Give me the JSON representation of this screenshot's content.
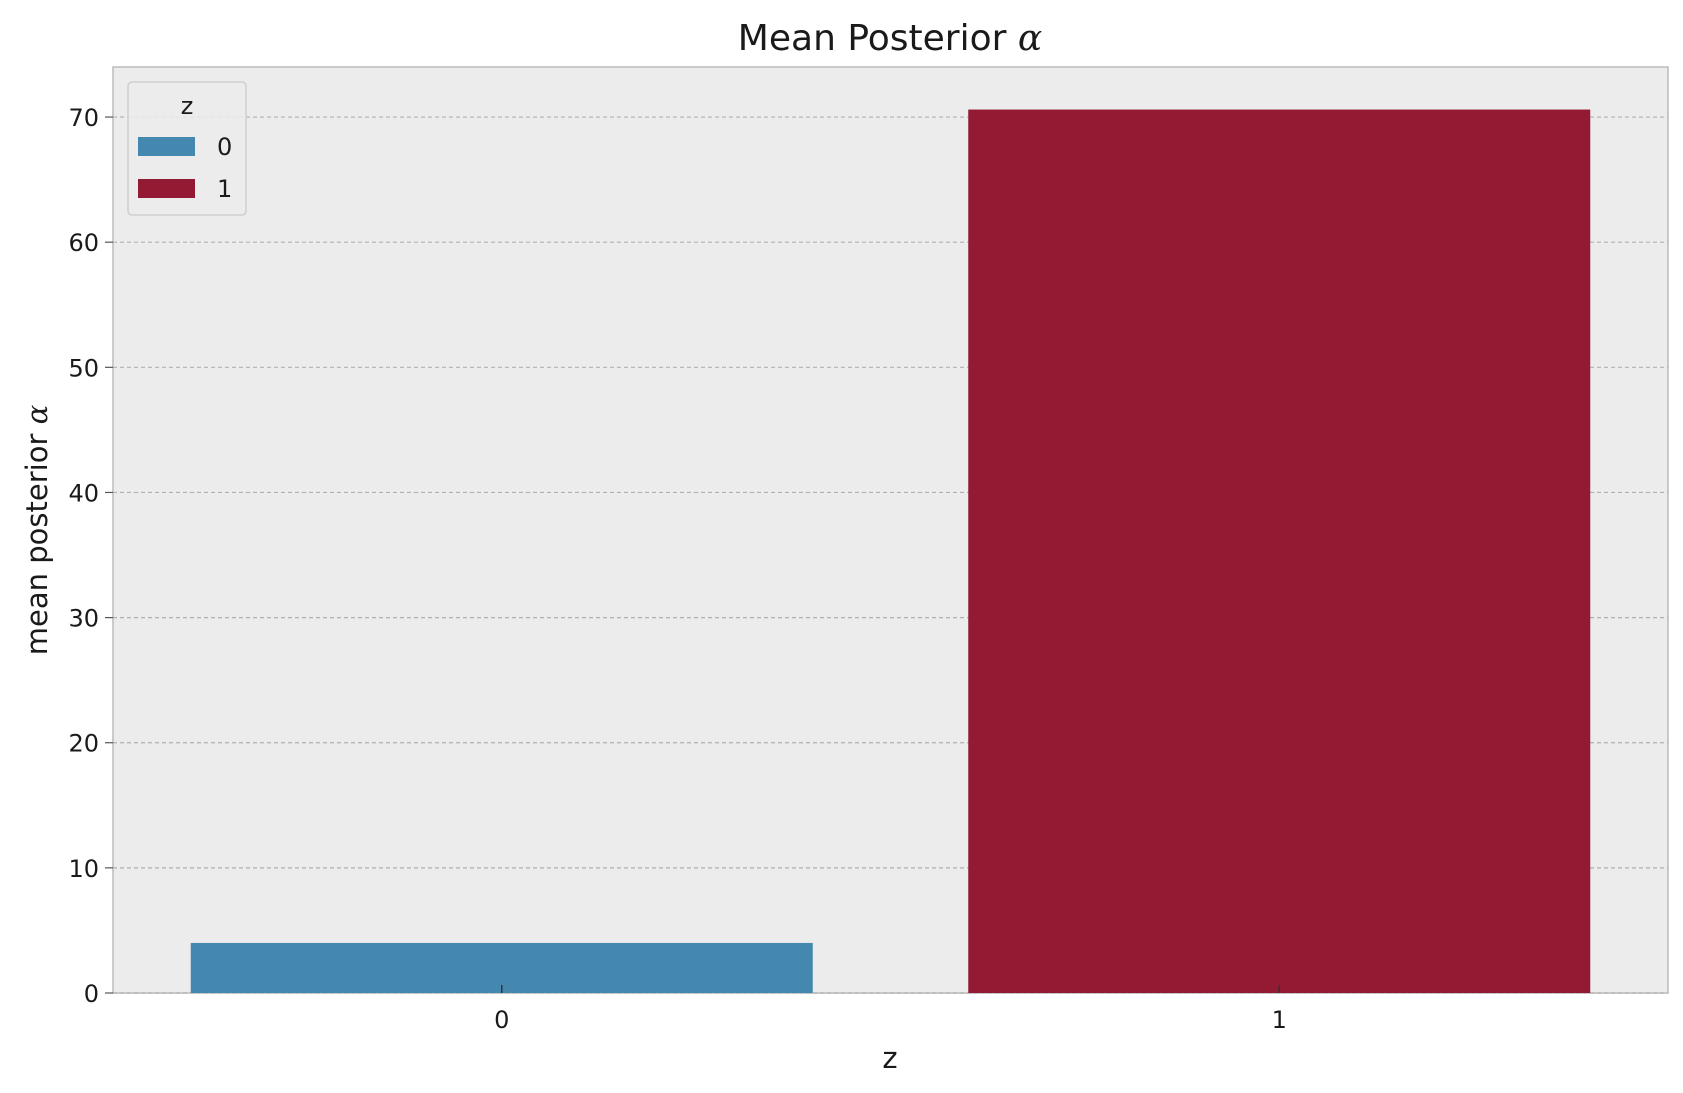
{
  "chart_data": {
    "type": "bar",
    "title": "Mean Posterior",
    "title_symbol": "α",
    "xlabel": "z",
    "ylabel": "mean posterior",
    "ylabel_symbol": "α",
    "categories": [
      "0",
      "1"
    ],
    "values": [
      4.0,
      70.6
    ],
    "colors": [
      "#4488b0",
      "#921a33"
    ],
    "ylim": [
      0,
      74
    ],
    "yticks": [
      0,
      10,
      20,
      30,
      40,
      50,
      60,
      70
    ],
    "grid": "y",
    "legend": {
      "title": "z",
      "placement": "top-left",
      "entries": [
        "0",
        "1"
      ]
    },
    "background": "#ececec",
    "grid_color": "#b0b0b0"
  }
}
